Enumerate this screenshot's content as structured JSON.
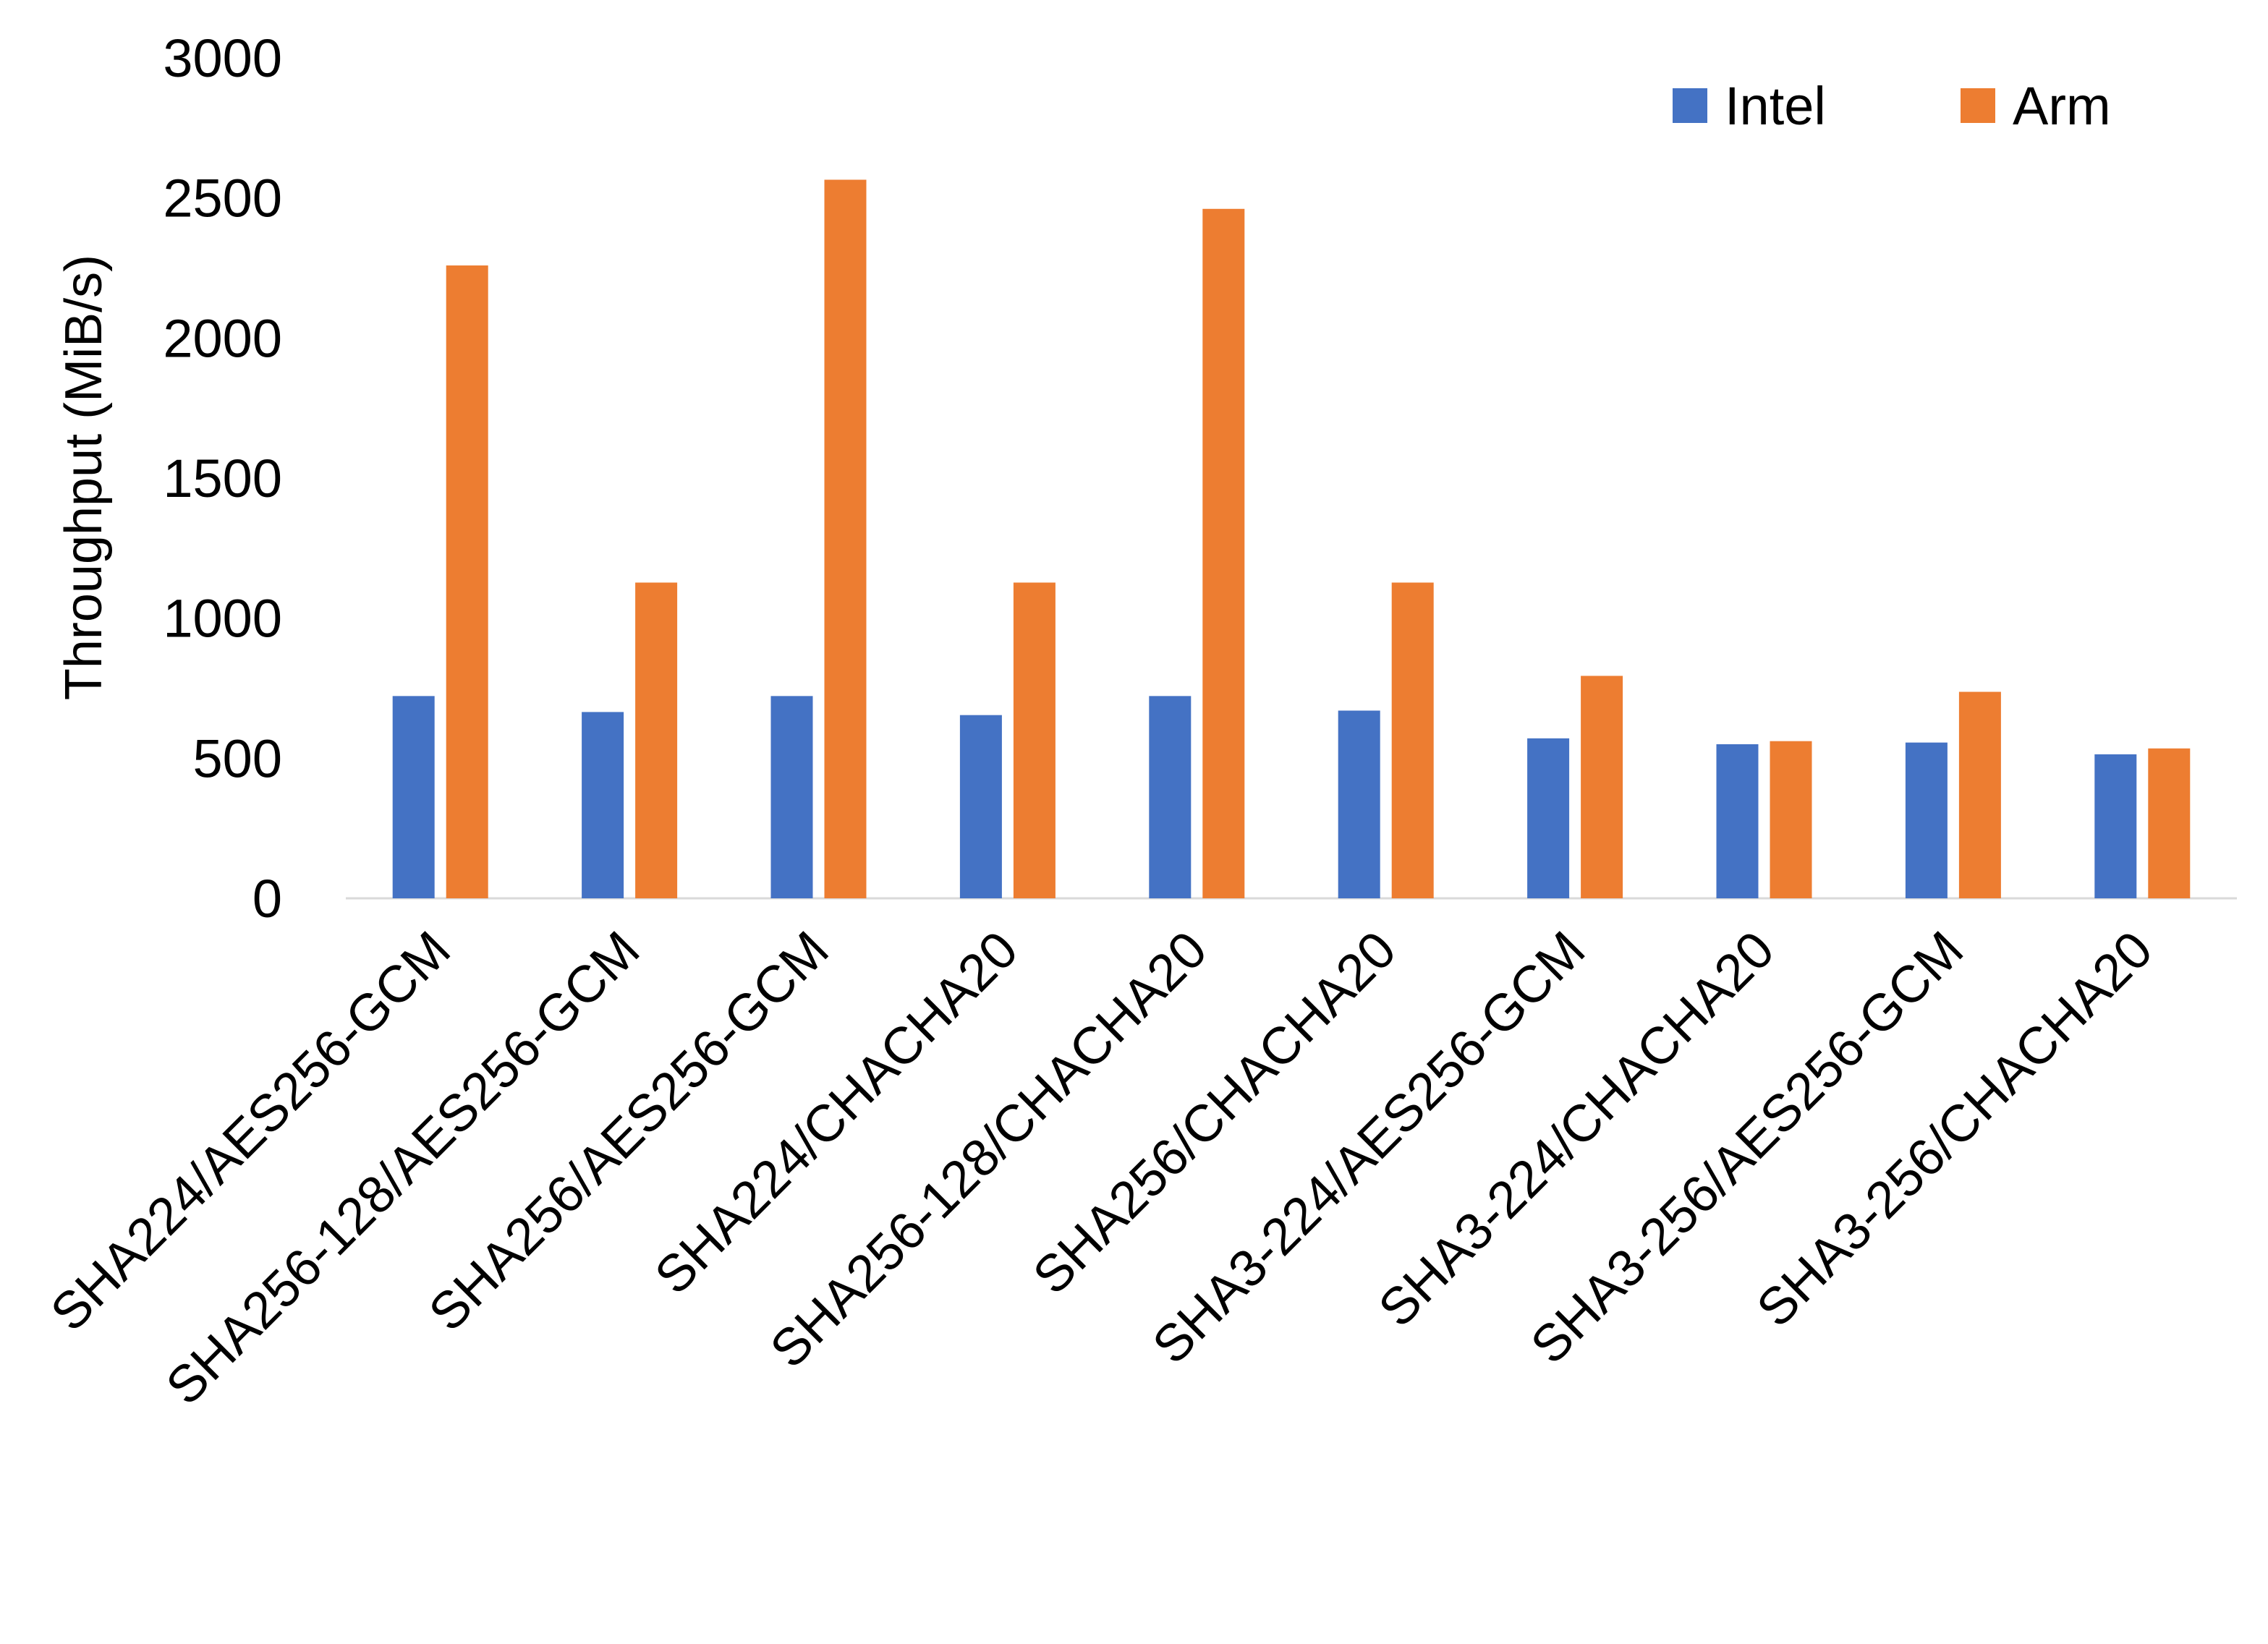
{
  "chart_data": {
    "type": "bar",
    "title": "",
    "xlabel": "",
    "ylabel": "Throughput (MiB/s)",
    "ylim": [
      0,
      3000
    ],
    "yticks": [
      0,
      500,
      1000,
      1500,
      2000,
      2500,
      3000
    ],
    "grid": false,
    "legend_position": "top-right",
    "categories": [
      "SHA224/AES256-GCM",
      "SHA256-128/AES256-GCM",
      "SHA256/AES256-GCM",
      "SHA224/CHACHA20",
      "SHA256-128/CHACHA20",
      "SHA256/CHACHA20",
      "SHA3-224/AES256-GCM",
      "SHA3-224/CHACHA20",
      "SHA3-256/AES256-GCM",
      "SHA3-256/CHACHA20"
    ],
    "series": [
      {
        "name": "Intel",
        "color": "#4472C4",
        "values": [
          722,
          665,
          722,
          654,
          722,
          670,
          571,
          550,
          556,
          514
        ]
      },
      {
        "name": "Arm",
        "color": "#ED7D31",
        "values": [
          2259,
          1127,
          2565,
          1127,
          2461,
          1127,
          794,
          561,
          737,
          535
        ]
      }
    ]
  }
}
